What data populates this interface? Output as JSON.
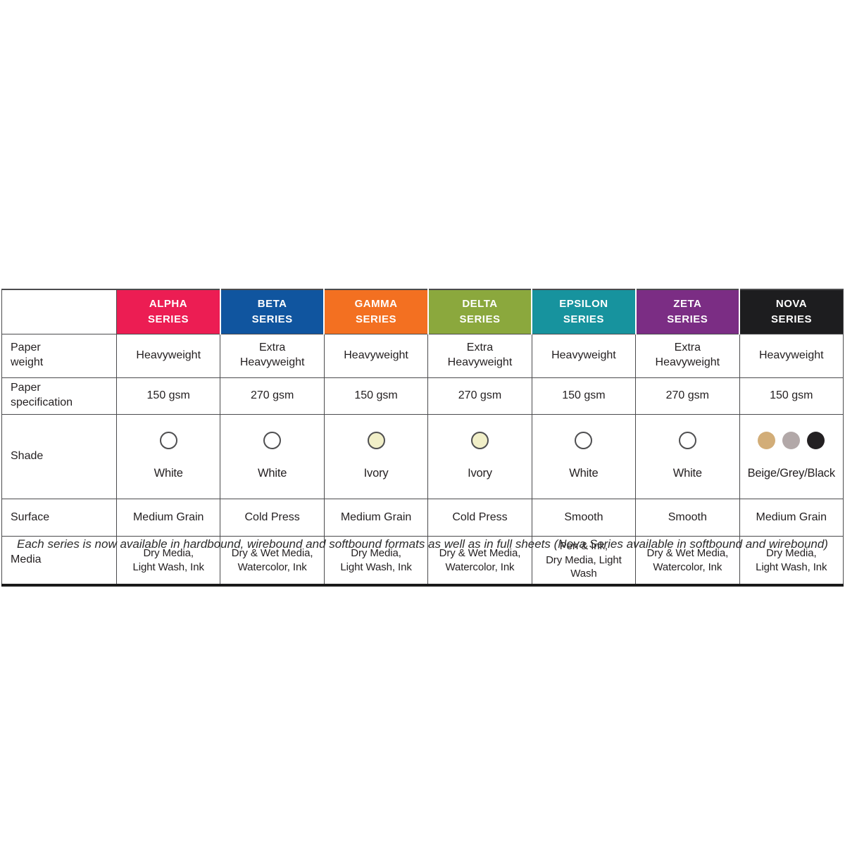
{
  "table": {
    "grid_color": "#4b4b4d",
    "row_labels": {
      "weight": "Paper\nweight",
      "spec": "Paper\nspecification",
      "shade": "Shade",
      "surface": "Surface",
      "media": "Media"
    },
    "series": [
      {
        "name": "ALPHA\nSERIES",
        "color": "#ec1d53",
        "weight": "Heavyweight",
        "spec": "150 gsm",
        "shade_label": "White",
        "swatches": [
          {
            "name": "white-swatch",
            "fill": "#ffffff",
            "outline": "#4f4f51"
          }
        ],
        "surface": "Medium Grain",
        "media": "Dry Media,\nLight Wash, Ink"
      },
      {
        "name": "BETA\nSERIES",
        "color": "#10559f",
        "weight": "Extra\nHeavyweight",
        "spec": "270 gsm",
        "shade_label": "White",
        "swatches": [
          {
            "name": "white-swatch",
            "fill": "#ffffff",
            "outline": "#4f4f51"
          }
        ],
        "surface": "Cold Press",
        "media": "Dry & Wet Media,\nWatercolor, Ink"
      },
      {
        "name": "GAMMA\nSERIES",
        "color": "#f37021",
        "weight": "Heavyweight",
        "spec": "150 gsm",
        "shade_label": "Ivory",
        "swatches": [
          {
            "name": "ivory-swatch",
            "fill": "#f1efc8",
            "outline": "#4f4f51"
          }
        ],
        "surface": "Medium Grain",
        "media": "Dry Media,\nLight Wash, Ink"
      },
      {
        "name": "DELTA\nSERIES",
        "color": "#8ba83d",
        "weight": "Extra\nHeavyweight",
        "spec": "270 gsm",
        "shade_label": "Ivory",
        "swatches": [
          {
            "name": "ivory-swatch",
            "fill": "#f1efc8",
            "outline": "#4f4f51"
          }
        ],
        "surface": "Cold Press",
        "media": "Dry & Wet Media,\nWatercolor, Ink"
      },
      {
        "name": "EPSILON\nSERIES",
        "color": "#17939e",
        "weight": "Heavyweight",
        "spec": "150 gsm",
        "shade_label": "White",
        "swatches": [
          {
            "name": "white-swatch",
            "fill": "#ffffff",
            "outline": "#4f4f51"
          }
        ],
        "surface": "Smooth",
        "media": "Pen & Ink,\nDry Media, Light Wash"
      },
      {
        "name": "ZETA\nSERIES",
        "color": "#7b2d84",
        "weight": "Extra\nHeavyweight",
        "spec": "270 gsm",
        "shade_label": "White",
        "swatches": [
          {
            "name": "white-swatch",
            "fill": "#ffffff",
            "outline": "#4f4f51"
          }
        ],
        "surface": "Smooth",
        "media": "Dry & Wet Media,\nWatercolor, Ink"
      },
      {
        "name": "NOVA\nSERIES",
        "color": "#1d1d1f",
        "weight": "Heavyweight",
        "spec": "150 gsm",
        "shade_label": "Beige/Grey/Black",
        "swatches": [
          {
            "name": "beige-swatch",
            "fill": "#d2ad78",
            "outline": ""
          },
          {
            "name": "grey-swatch",
            "fill": "#b2a8a8",
            "outline": ""
          },
          {
            "name": "black-swatch",
            "fill": "#232022",
            "outline": ""
          }
        ],
        "surface": "Medium Grain",
        "media": "Dry Media,\nLight Wash, Ink"
      }
    ]
  },
  "footnote": "Each series is now available in hardbound, wirebound and softbound formats as well as in full sheets (Nova Series available in softbound and wirebound)"
}
